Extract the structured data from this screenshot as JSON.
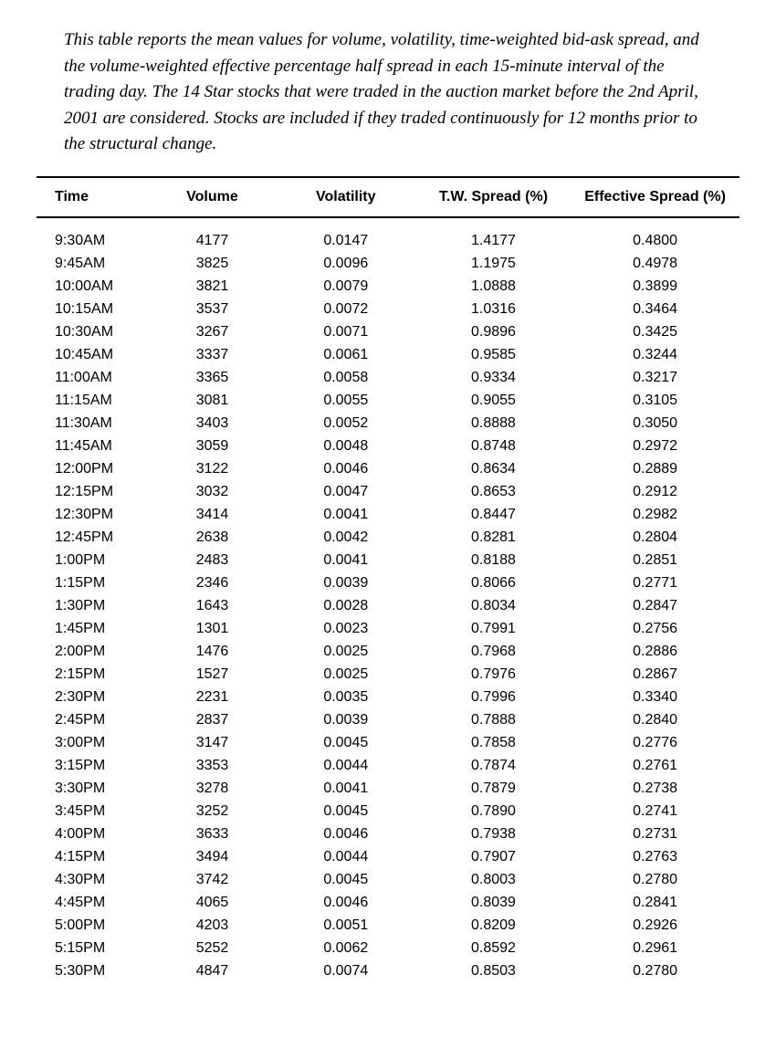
{
  "caption": "This table reports the mean values for volume, volatility, time-weighted bid-ask spread, and the volume-weighted effective percentage half spread in each 15-minute interval of the trading day. The 14 Star stocks that were traded in the auction market before the 2nd April, 2001 are considered. Stocks are included if they traded continuously for 12 months prior to the structural change.",
  "table": {
    "columns": [
      "Time",
      "Volume",
      "Volatility",
      "T.W. Spread (%)",
      "Effective Spread (%)"
    ],
    "rows": [
      [
        "9:30AM",
        "4177",
        "0.0147",
        "1.4177",
        "0.4800"
      ],
      [
        "9:45AM",
        "3825",
        "0.0096",
        "1.1975",
        "0.4978"
      ],
      [
        "10:00AM",
        "3821",
        "0.0079",
        "1.0888",
        "0.3899"
      ],
      [
        "10:15AM",
        "3537",
        "0.0072",
        "1.0316",
        "0.3464"
      ],
      [
        "10:30AM",
        "3267",
        "0.0071",
        "0.9896",
        "0.3425"
      ],
      [
        "10:45AM",
        "3337",
        "0.0061",
        "0.9585",
        "0.3244"
      ],
      [
        "11:00AM",
        "3365",
        "0.0058",
        "0.9334",
        "0.3217"
      ],
      [
        "11:15AM",
        "3081",
        "0.0055",
        "0.9055",
        "0.3105"
      ],
      [
        "11:30AM",
        "3403",
        "0.0052",
        "0.8888",
        "0.3050"
      ],
      [
        "11:45AM",
        "3059",
        "0.0048",
        "0.8748",
        "0.2972"
      ],
      [
        "12:00PM",
        "3122",
        "0.0046",
        "0.8634",
        "0.2889"
      ],
      [
        "12:15PM",
        "3032",
        "0.0047",
        "0.8653",
        "0.2912"
      ],
      [
        "12:30PM",
        "3414",
        "0.0041",
        "0.8447",
        "0.2982"
      ],
      [
        "12:45PM",
        "2638",
        "0.0042",
        "0.8281",
        "0.2804"
      ],
      [
        "1:00PM",
        "2483",
        "0.0041",
        "0.8188",
        "0.2851"
      ],
      [
        "1:15PM",
        "2346",
        "0.0039",
        "0.8066",
        "0.2771"
      ],
      [
        "1:30PM",
        "1643",
        "0.0028",
        "0.8034",
        "0.2847"
      ],
      [
        "1:45PM",
        "1301",
        "0.0023",
        "0.7991",
        "0.2756"
      ],
      [
        "2:00PM",
        "1476",
        "0.0025",
        "0.7968",
        "0.2886"
      ],
      [
        "2:15PM",
        "1527",
        "0.0025",
        "0.7976",
        "0.2867"
      ],
      [
        "2:30PM",
        "2231",
        "0.0035",
        "0.7996",
        "0.3340"
      ],
      [
        "2:45PM",
        "2837",
        "0.0039",
        "0.7888",
        "0.2840"
      ],
      [
        "3:00PM",
        "3147",
        "0.0045",
        "0.7858",
        "0.2776"
      ],
      [
        "3:15PM",
        "3353",
        "0.0044",
        "0.7874",
        "0.2761"
      ],
      [
        "3:30PM",
        "3278",
        "0.0041",
        "0.7879",
        "0.2738"
      ],
      [
        "3:45PM",
        "3252",
        "0.0045",
        "0.7890",
        "0.2741"
      ],
      [
        "4:00PM",
        "3633",
        "0.0046",
        "0.7938",
        "0.2731"
      ],
      [
        "4:15PM",
        "3494",
        "0.0044",
        "0.7907",
        "0.2763"
      ],
      [
        "4:30PM",
        "3742",
        "0.0045",
        "0.8003",
        "0.2780"
      ],
      [
        "4:45PM",
        "4065",
        "0.0046",
        "0.8039",
        "0.2841"
      ],
      [
        "5:00PM",
        "4203",
        "0.0051",
        "0.8209",
        "0.2926"
      ],
      [
        "5:15PM",
        "5252",
        "0.0062",
        "0.8592",
        "0.2961"
      ],
      [
        "5:30PM",
        "4847",
        "0.0074",
        "0.8503",
        "0.2780"
      ]
    ],
    "border_color": "#000000",
    "header_fontsize": 16,
    "cell_fontsize": 16,
    "background_color": "#ffffff"
  }
}
